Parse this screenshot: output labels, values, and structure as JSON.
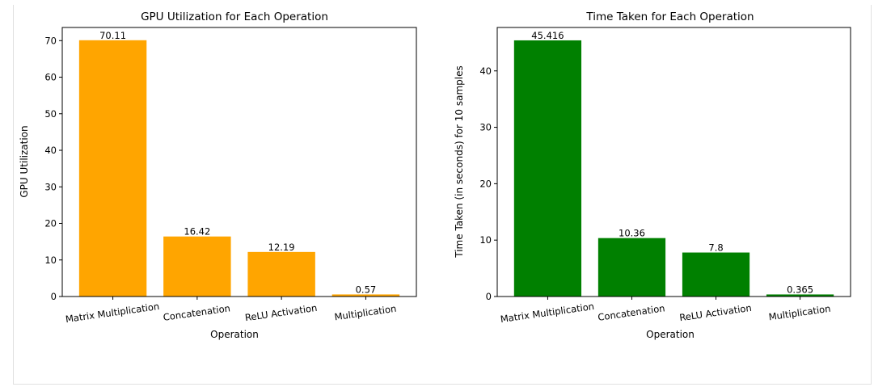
{
  "chart_data": [
    {
      "type": "bar",
      "title": "GPU Utilization for Each Operation",
      "xlabel": "Operation",
      "ylabel": "GPU Utilization",
      "categories": [
        "Matrix Multiplication",
        "Concatenation",
        "ReLU Activation",
        "Multiplication"
      ],
      "values": [
        70.11,
        16.42,
        12.19,
        0.57
      ],
      "value_labels": [
        "70.11",
        "16.42",
        "12.19",
        "0.57"
      ],
      "yticks": [
        0,
        10,
        20,
        30,
        40,
        50,
        60,
        70
      ],
      "ylim": [
        0,
        73.6
      ],
      "color": "#FFA500",
      "grid": false
    },
    {
      "type": "bar",
      "title": "Time Taken for Each Operation",
      "xlabel": "Operation",
      "ylabel": "Time Taken (in seconds) for 10 samples",
      "categories": [
        "Matrix Multiplication",
        "Concatenation",
        "ReLU Activation",
        "Multiplication"
      ],
      "values": [
        45.416,
        10.36,
        7.8,
        0.365
      ],
      "value_labels": [
        "45.416",
        "10.36",
        "7.8",
        "0.365"
      ],
      "yticks": [
        0,
        10,
        20,
        30,
        40
      ],
      "ylim": [
        0,
        47.7
      ],
      "color": "#008000",
      "grid": false
    }
  ]
}
